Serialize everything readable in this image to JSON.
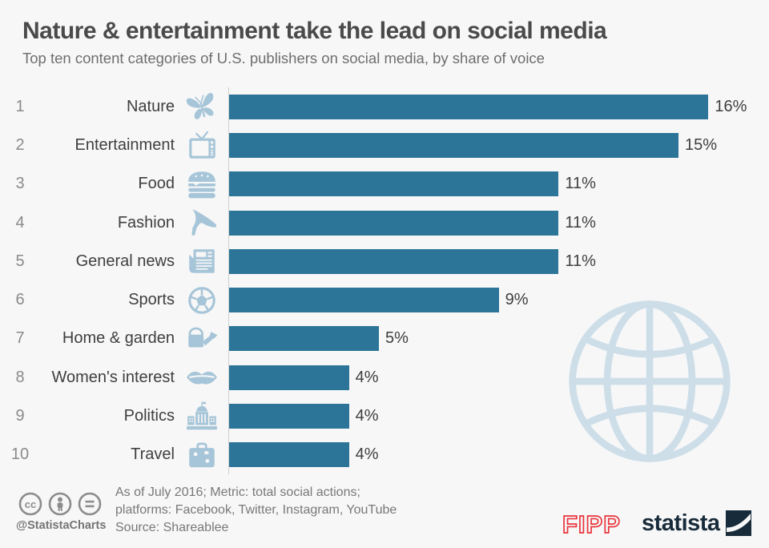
{
  "chart_data": {
    "type": "bar",
    "orientation": "horizontal",
    "title": "Nature & entertainment take the lead on social media",
    "subtitle": "Top ten content categories of U.S. publishers on social media, by share of voice",
    "categories": [
      "Nature",
      "Entertainment",
      "Food",
      "Fashion",
      "General news",
      "Sports",
      "Home & garden",
      "Women's interest",
      "Politics",
      "Travel"
    ],
    "ranks": [
      "1",
      "2",
      "3",
      "4",
      "5",
      "6",
      "7",
      "8",
      "9",
      "10"
    ],
    "values": [
      16,
      15,
      11,
      11,
      11,
      9,
      5,
      4,
      4,
      4
    ],
    "value_labels": [
      "16%",
      "15%",
      "11%",
      "11%",
      "11%",
      "9%",
      "5%",
      "4%",
      "4%",
      "4%"
    ],
    "unit": "%",
    "xlim": [
      0,
      16
    ],
    "grid": "off",
    "legend": "none",
    "bar_color": "#2c7599",
    "icons": [
      "butterfly-icon",
      "tv-icon",
      "burger-icon",
      "high-heel-icon",
      "newspaper-icon",
      "soccer-ball-icon",
      "watering-can-icon",
      "lips-icon",
      "capitol-icon",
      "suitcase-icon"
    ]
  },
  "footer": {
    "license_icons": [
      "cc-icon",
      "attribution-person-icon",
      "no-derivatives-equals-icon"
    ],
    "handle": "@StatistaCharts",
    "note_line1": "As of July 2016; Metric: total social actions;",
    "note_line2": "platforms: Facebook, Twitter, Instagram, YouTube",
    "source": "Source: Shareablee",
    "fipp_logo_text": "FIPP",
    "statista_logo_text": "statista"
  },
  "colors": {
    "background": "#f7f7f7",
    "bar": "#2c7599",
    "icon_blue": "#a6c5d8",
    "globe_blue": "#cddee9",
    "fipp_red": "#e8353c",
    "statista_navy": "#182b3a",
    "title_text": "#4a4a4a",
    "subtitle_text": "#6e6e6e",
    "footer_text": "#787878"
  }
}
